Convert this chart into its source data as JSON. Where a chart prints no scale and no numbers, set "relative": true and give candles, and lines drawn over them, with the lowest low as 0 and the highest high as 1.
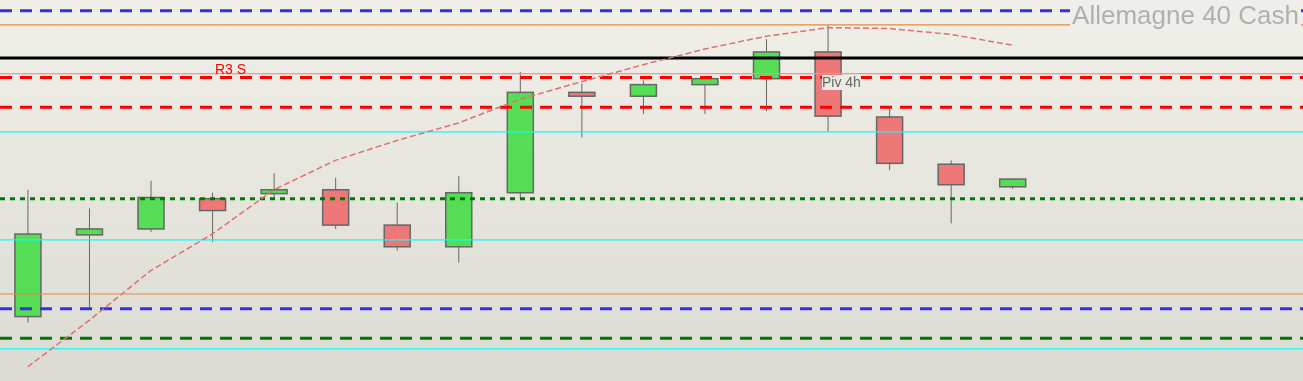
{
  "chart_data": {
    "type": "candlestick",
    "title": "Allemagne 40 Cash",
    "relative": true,
    "categories": [
      null,
      null,
      null,
      null,
      null,
      null,
      null,
      null,
      null,
      null,
      null,
      null,
      null,
      null,
      null,
      null,
      null
    ],
    "ohlc": [
      [
        0.02,
        0.447,
        0,
        0.298
      ],
      [
        0.295,
        0.384,
        0.05,
        0.315
      ],
      [
        0.315,
        0.477,
        0.305,
        0.421
      ],
      [
        0.417,
        0.437,
        0.272,
        0.377
      ],
      [
        0.434,
        0.503,
        0.421,
        0.447
      ],
      [
        0.447,
        0.487,
        0.315,
        0.328
      ],
      [
        0.328,
        0.404,
        0.242,
        0.255
      ],
      [
        0.255,
        0.493,
        0.202,
        0.437
      ],
      [
        0.437,
        0.844,
        0.417,
        0.775
      ],
      [
        0.775,
        0.805,
        0.623,
        0.762
      ],
      [
        0.762,
        0.815,
        0.702,
        0.801
      ],
      [
        0.801,
        0.821,
        0.702,
        0.821
      ],
      [
        0.821,
        0.954,
        0.712,
        0.911
      ],
      [
        0.911,
        1,
        0.642,
        0.695
      ],
      [
        0.692,
        0.719,
        0.513,
        0.536
      ],
      [
        0.533,
        0.546,
        0.334,
        0.464
      ],
      [
        0.457,
        0.483,
        0.45,
        0.483
      ]
    ],
    "series": [
      {
        "type": "line",
        "color": "#e07070",
        "line_style": "dashed",
        "values": [
          -0.149,
          0.007,
          0.175,
          0.298,
          0.447,
          0.546,
          0.613,
          0.672,
          0.752,
          0.811,
          0.868,
          0.921,
          0.964,
          0.993,
          0.99,
          0.97,
          0.934
        ]
      }
    ],
    "ref_lines": [
      {
        "axis": "y",
        "value": 1.05,
        "color": "#3333dd",
        "line_style": "dashed"
      },
      {
        "axis": "y",
        "value": 1.002,
        "color": "#e88a3a",
        "line_style": "solid"
      },
      {
        "axis": "y",
        "value": 0.891,
        "color": "#000000",
        "line_style": "solid"
      },
      {
        "axis": "y",
        "value": 0.838,
        "color": "#f59090",
        "line_style": "solid"
      },
      {
        "axis": "y",
        "value": 0.825,
        "color": "#ff0000",
        "line_style": "dashed",
        "label": "R3 S"
      },
      {
        "axis": "y",
        "value": 0.725,
        "color": "#ff0000",
        "line_style": "dashed"
      },
      {
        "axis": "y",
        "value": 0.642,
        "color": "#00ffff",
        "line_style": "solid"
      },
      {
        "axis": "y",
        "value": 0.417,
        "color": "#007700",
        "line_style": "dotted"
      },
      {
        "axis": "y",
        "value": 0.278,
        "color": "#00ffff",
        "line_style": "solid"
      },
      {
        "axis": "y",
        "value": 0.096,
        "color": "#e88a3a",
        "line_style": "solid"
      },
      {
        "axis": "y",
        "value": 0.046,
        "color": "#3333dd",
        "line_style": "dashed"
      },
      {
        "axis": "y",
        "value": -0.053,
        "color": "#007700",
        "line_style": "dashed"
      },
      {
        "axis": "y",
        "value": -0.089,
        "color": "#00ffff",
        "line_style": "solid"
      }
    ],
    "annotations": [
      "Piv 4h"
    ]
  }
}
